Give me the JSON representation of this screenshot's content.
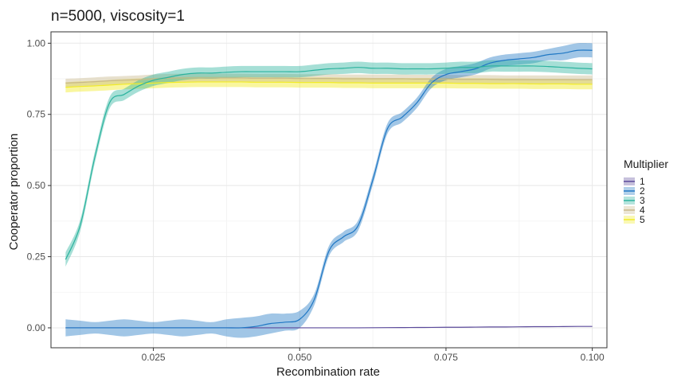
{
  "chart_data": {
    "type": "line",
    "title": "n=5000, viscosity=1",
    "xlabel": "Recombination rate",
    "ylabel": "Cooperator proportion",
    "xlim": [
      0.0075,
      0.1025
    ],
    "ylim": [
      -0.07,
      1.04
    ],
    "xticks": [
      0.025,
      0.05,
      0.075,
      0.1
    ],
    "xtick_labels": [
      "0.025",
      "0.050",
      "0.075",
      "0.100"
    ],
    "yticks": [
      0,
      0.25,
      0.5,
      0.75,
      1.0
    ],
    "ytick_labels": [
      "0.00",
      "0.25",
      "0.50",
      "0.75",
      "1.00"
    ],
    "grid": true,
    "legend_title": "Multiplier",
    "legend_position": "right",
    "x": [
      0.01,
      0.0125,
      0.015,
      0.0175,
      0.02,
      0.0225,
      0.025,
      0.0275,
      0.03,
      0.0325,
      0.035,
      0.0375,
      0.04,
      0.0425,
      0.045,
      0.0475,
      0.05,
      0.0525,
      0.055,
      0.0575,
      0.06,
      0.0625,
      0.065,
      0.0675,
      0.07,
      0.0725,
      0.075,
      0.0775,
      0.08,
      0.0825,
      0.085,
      0.0875,
      0.09,
      0.0925,
      0.095,
      0.0975,
      0.1
    ],
    "series": [
      {
        "name": "1",
        "color": "#5B4A9B",
        "values": [
          0,
          0,
          0,
          0,
          0,
          0,
          0,
          0,
          0,
          0,
          0,
          0,
          0,
          0,
          0,
          0,
          0,
          0,
          0,
          0,
          0,
          0.0005,
          0.0008,
          0.001,
          0.0012,
          0.0015,
          0.002,
          0.002,
          0.0025,
          0.003,
          0.003,
          0.0035,
          0.004,
          0.004,
          0.0045,
          0.005,
          0.005
        ],
        "band": [
          0,
          0,
          0,
          0,
          0,
          0,
          0,
          0,
          0,
          0,
          0,
          0,
          0,
          0,
          0,
          0,
          0,
          0,
          0,
          0,
          0,
          0,
          0,
          0,
          0,
          0,
          0,
          0,
          0,
          0,
          0,
          0,
          0,
          0,
          0,
          0,
          0
        ]
      },
      {
        "name": "2",
        "color": "#1F77C4",
        "values": [
          0,
          0,
          0,
          0,
          0,
          0,
          0,
          0,
          0,
          0,
          0,
          0,
          0,
          0.005,
          0.015,
          0.02,
          0.03,
          0.1,
          0.27,
          0.32,
          0.36,
          0.52,
          0.7,
          0.74,
          0.79,
          0.86,
          0.89,
          0.9,
          0.91,
          0.93,
          0.94,
          0.945,
          0.95,
          0.96,
          0.965,
          0.975,
          0.975
        ],
        "band": [
          0.03,
          0.025,
          0.02,
          0.025,
          0.03,
          0.025,
          0.02,
          0.025,
          0.03,
          0.025,
          0.02,
          0.03,
          0.035,
          0.035,
          0.035,
          0.03,
          0.03,
          0.02,
          0.018,
          0.018,
          0.018,
          0.018,
          0.018,
          0.018,
          0.018,
          0.018,
          0.02,
          0.02,
          0.02,
          0.02,
          0.02,
          0.02,
          0.02,
          0.02,
          0.025,
          0.025,
          0.025
        ]
      },
      {
        "name": "3",
        "color": "#2BB39E",
        "values": [
          0.24,
          0.36,
          0.6,
          0.79,
          0.82,
          0.85,
          0.87,
          0.88,
          0.89,
          0.895,
          0.895,
          0.898,
          0.9,
          0.9,
          0.9,
          0.9,
          0.9,
          0.905,
          0.91,
          0.912,
          0.915,
          0.912,
          0.912,
          0.91,
          0.91,
          0.91,
          0.912,
          0.915,
          0.915,
          0.92,
          0.92,
          0.92,
          0.92,
          0.918,
          0.915,
          0.912,
          0.91
        ],
        "band": [
          0.025,
          0.02,
          0.02,
          0.02,
          0.02,
          0.02,
          0.02,
          0.02,
          0.02,
          0.02,
          0.02,
          0.02,
          0.02,
          0.02,
          0.02,
          0.02,
          0.02,
          0.02,
          0.02,
          0.02,
          0.02,
          0.02,
          0.02,
          0.02,
          0.02,
          0.02,
          0.02,
          0.02,
          0.02,
          0.02,
          0.02,
          0.02,
          0.02,
          0.02,
          0.02,
          0.02,
          0.02
        ]
      },
      {
        "name": "4",
        "color": "#C8B88A",
        "values": [
          0.86,
          0.862,
          0.865,
          0.868,
          0.87,
          0.872,
          0.875,
          0.877,
          0.878,
          0.878,
          0.878,
          0.878,
          0.878,
          0.877,
          0.877,
          0.877,
          0.876,
          0.876,
          0.876,
          0.875,
          0.875,
          0.875,
          0.875,
          0.875,
          0.874,
          0.874,
          0.874,
          0.873,
          0.873,
          0.873,
          0.872,
          0.872,
          0.872,
          0.872,
          0.872,
          0.872,
          0.872
        ],
        "band": [
          0.015,
          0.015,
          0.015,
          0.015,
          0.015,
          0.015,
          0.015,
          0.015,
          0.015,
          0.015,
          0.015,
          0.015,
          0.015,
          0.015,
          0.015,
          0.015,
          0.015,
          0.015,
          0.015,
          0.015,
          0.015,
          0.015,
          0.015,
          0.015,
          0.015,
          0.015,
          0.015,
          0.015,
          0.015,
          0.015,
          0.015,
          0.015,
          0.015,
          0.015,
          0.015,
          0.015,
          0.015
        ]
      },
      {
        "name": "5",
        "color": "#F2EC27",
        "values": [
          0.845,
          0.848,
          0.85,
          0.853,
          0.856,
          0.858,
          0.86,
          0.862,
          0.863,
          0.864,
          0.864,
          0.864,
          0.864,
          0.863,
          0.863,
          0.863,
          0.862,
          0.862,
          0.862,
          0.861,
          0.861,
          0.86,
          0.86,
          0.86,
          0.86,
          0.86,
          0.86,
          0.859,
          0.859,
          0.858,
          0.858,
          0.858,
          0.857,
          0.857,
          0.857,
          0.856,
          0.856
        ],
        "band": [
          0.018,
          0.018,
          0.018,
          0.018,
          0.018,
          0.018,
          0.018,
          0.018,
          0.018,
          0.018,
          0.018,
          0.018,
          0.018,
          0.018,
          0.018,
          0.018,
          0.018,
          0.018,
          0.018,
          0.018,
          0.018,
          0.018,
          0.018,
          0.018,
          0.018,
          0.018,
          0.018,
          0.018,
          0.018,
          0.018,
          0.018,
          0.018,
          0.018,
          0.018,
          0.018,
          0.018,
          0.018
        ]
      }
    ]
  }
}
